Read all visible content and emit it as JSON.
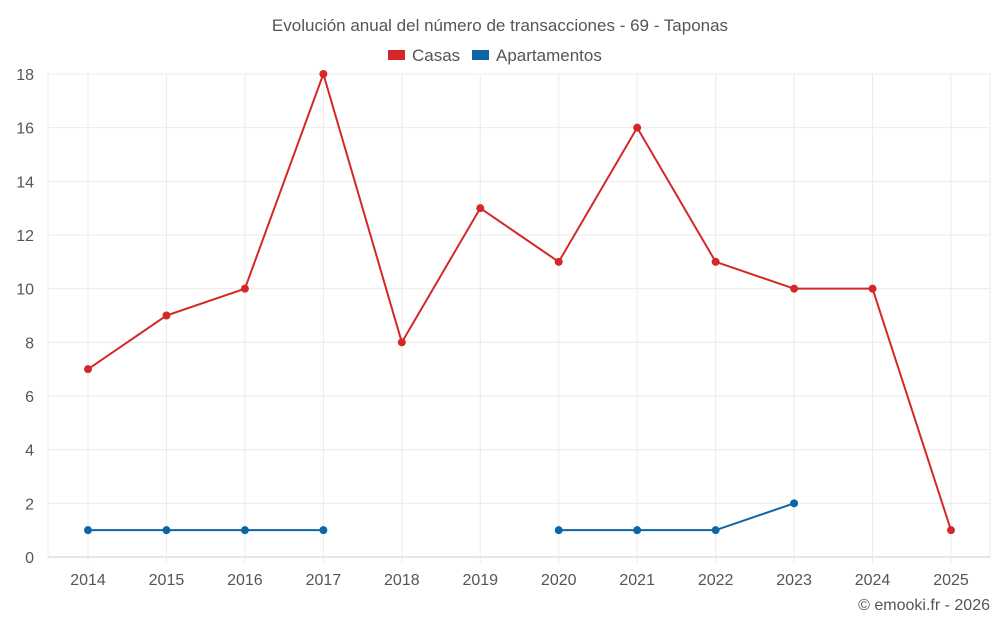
{
  "chart_data": {
    "type": "line",
    "title": "Evolución anual del número de transacciones - 69 - Taponas",
    "categories": [
      "2014",
      "2015",
      "2016",
      "2017",
      "2018",
      "2019",
      "2020",
      "2021",
      "2022",
      "2023",
      "2024",
      "2025"
    ],
    "series": [
      {
        "name": "Casas",
        "color": "#d62728",
        "values": [
          7,
          9,
          10,
          18,
          8,
          13,
          11,
          16,
          11,
          10,
          10,
          1
        ]
      },
      {
        "name": "Apartamentos",
        "color": "#0d66a3",
        "values": [
          1,
          1,
          1,
          1,
          null,
          null,
          1,
          1,
          1,
          2,
          null,
          null
        ]
      }
    ],
    "yticks": [
      0,
      2,
      4,
      6,
      8,
      10,
      12,
      14,
      16,
      18
    ],
    "ylim": [
      0,
      18
    ],
    "xlabel": "",
    "ylabel": "",
    "grid": true,
    "legend": "top-center"
  },
  "credit": "© emooki.fr - 2026"
}
